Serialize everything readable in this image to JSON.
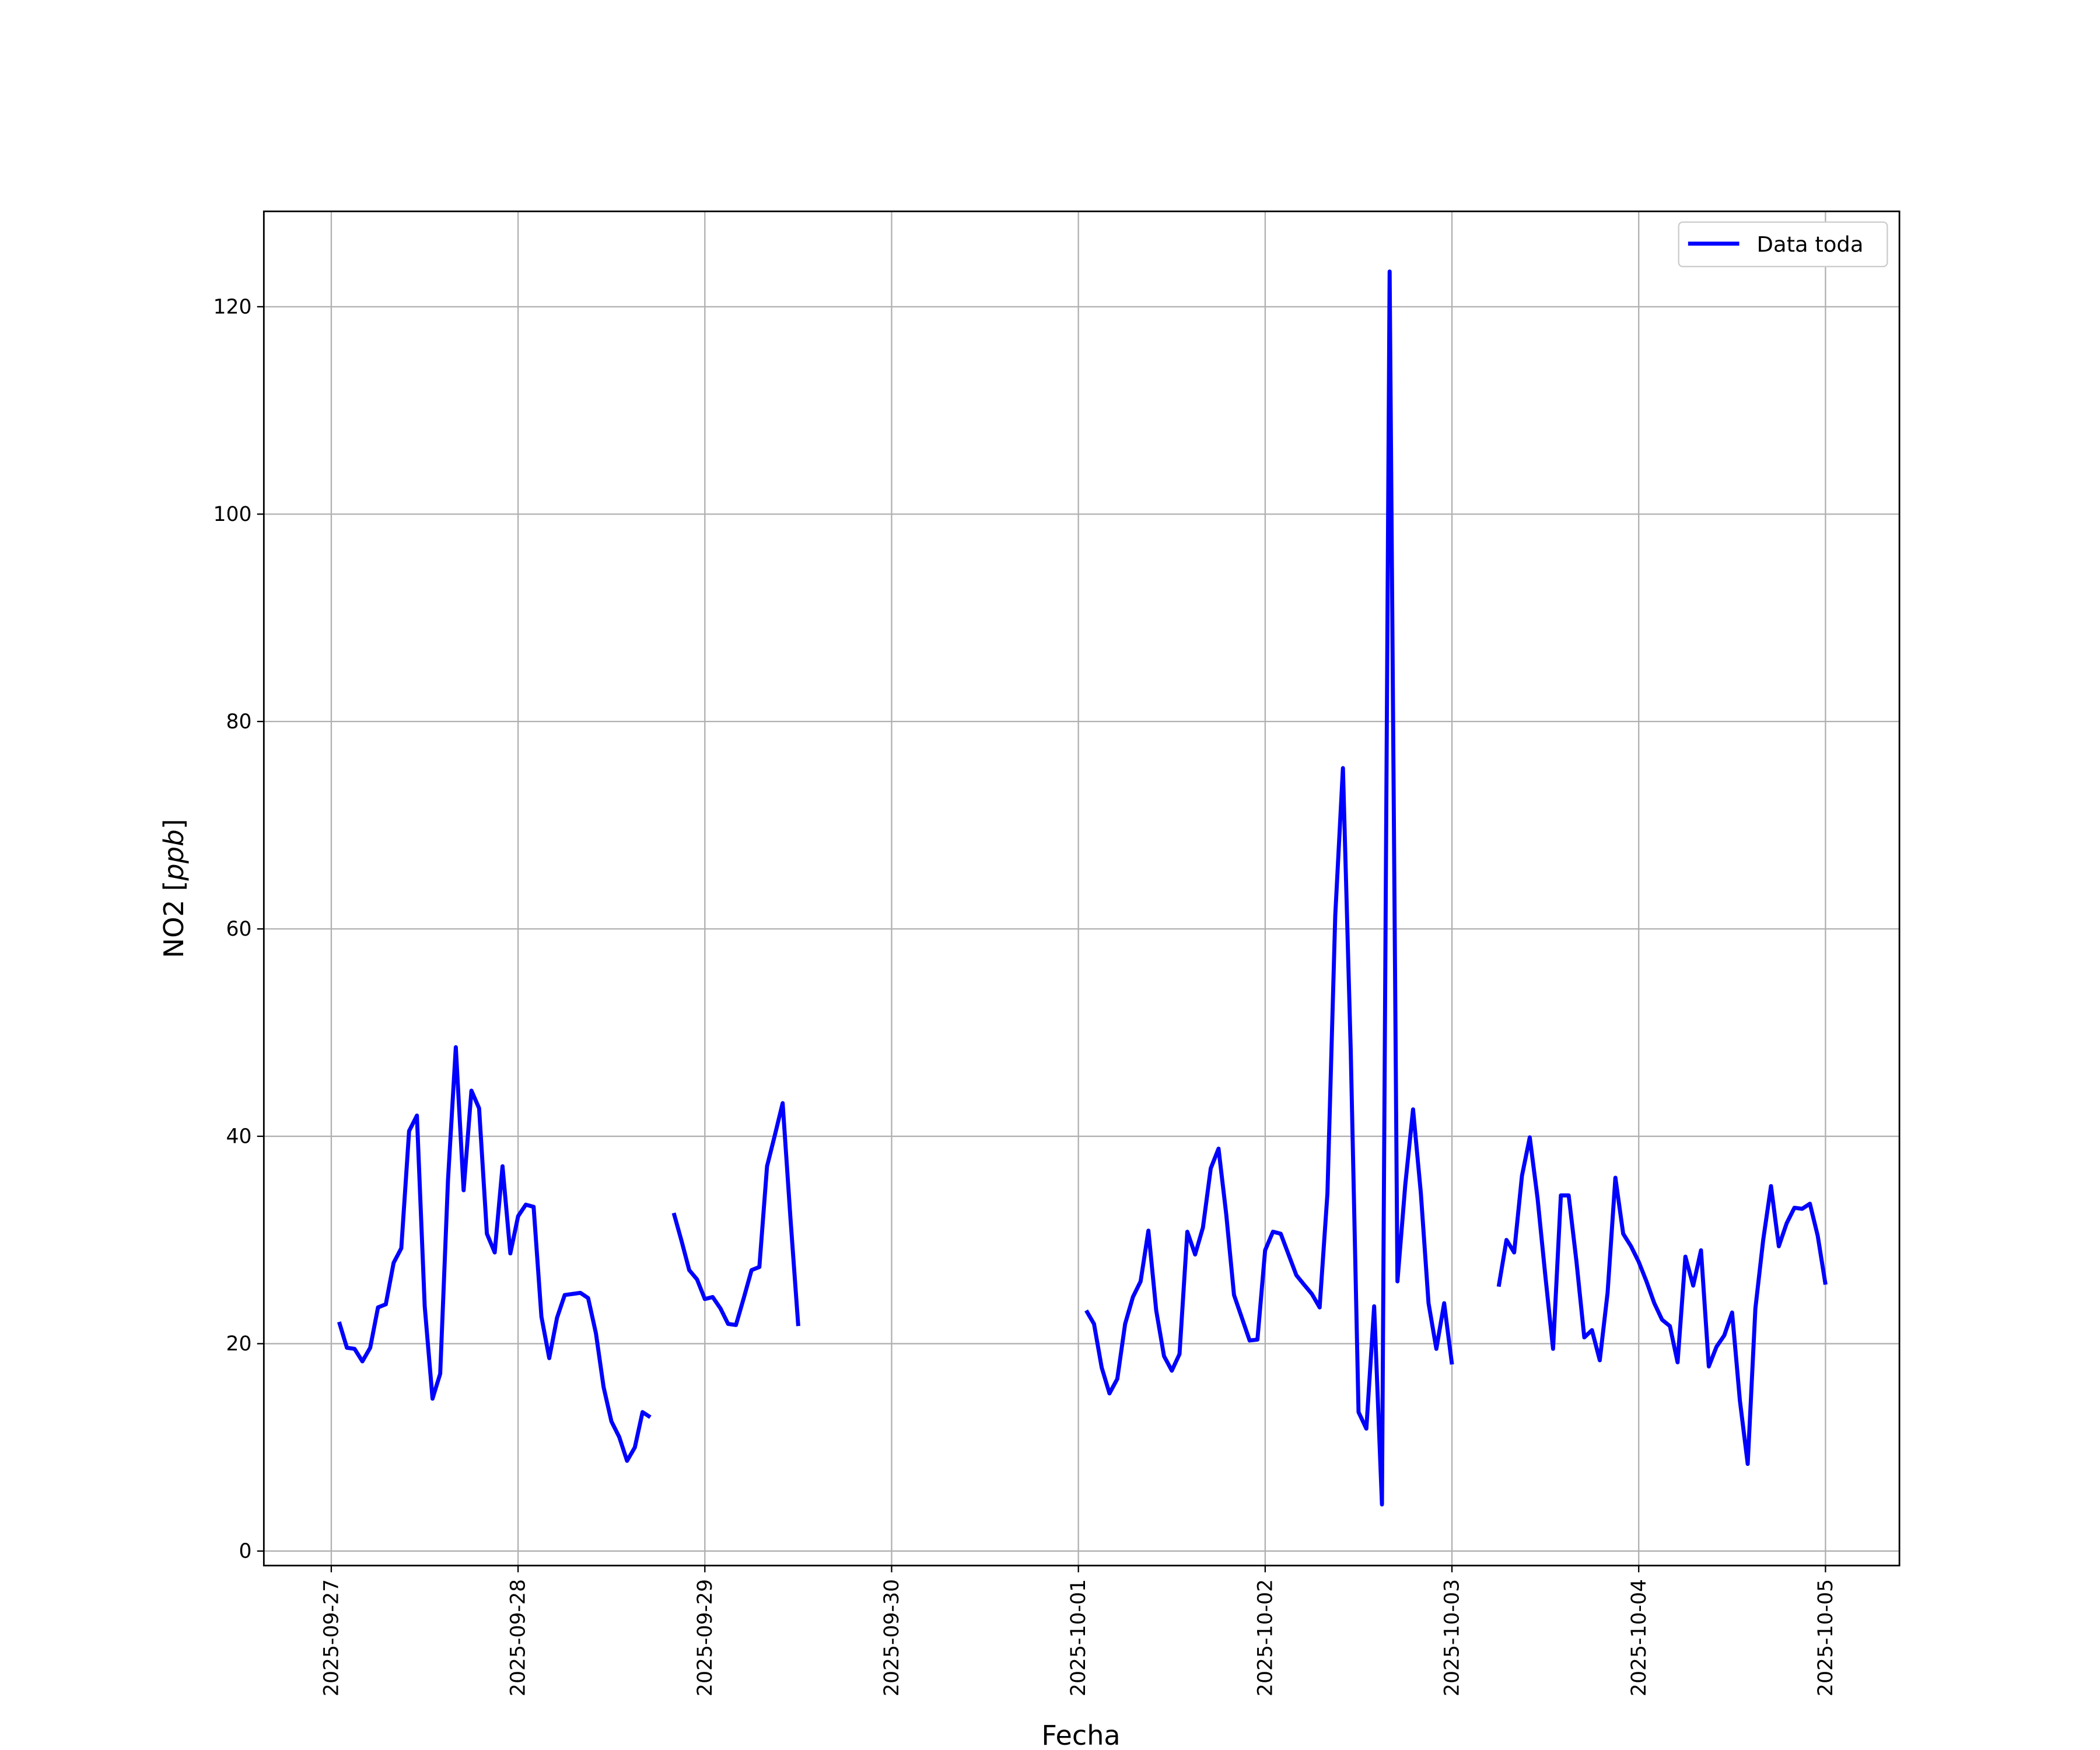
{
  "chart_data": {
    "type": "line",
    "title": "",
    "xlabel": "Fecha",
    "ylabel_plain": "NO2 [",
    "ylabel_italic": "ppb",
    "ylabel_close": "]",
    "ylim": [
      -1.4,
      129.2
    ],
    "xlim": [
      "2025-09-26T15:20",
      "2025-10-05T09:30"
    ],
    "yticks": [
      0,
      20,
      40,
      60,
      80,
      100,
      120
    ],
    "xticks": [
      "2025-09-27",
      "2025-09-28",
      "2025-09-29",
      "2025-09-30",
      "2025-10-01",
      "2025-10-02",
      "2025-10-03",
      "2025-10-04",
      "2025-10-05"
    ],
    "grid": true,
    "legend_placement": "top-right",
    "line_color": "#0000ff",
    "series": [
      {
        "name": "Data toda",
        "frequency": "hourly",
        "segments": [
          {
            "start": "2025-09-27T01:00",
            "values": [
              22.1,
              19.6,
              19.5,
              18.3,
              19.6,
              23.5,
              23.8,
              27.8,
              29.2,
              40.5,
              42.0,
              23.6,
              14.7,
              17.1,
              35.8,
              48.6,
              34.8,
              44.4,
              42.7,
              30.6,
              28.8,
              37.1,
              28.7,
              32.3,
              33.4,
              33.2,
              22.6,
              18.6,
              22.5,
              24.7,
              24.8,
              24.9,
              24.4,
              21.0,
              15.8,
              12.5,
              11.0,
              8.7,
              10.0,
              13.4,
              12.9
            ]
          },
          {
            "start": "2025-09-28T20:00",
            "values": [
              32.6,
              29.9,
              27.1,
              26.2,
              24.3,
              24.5,
              23.4,
              21.9,
              21.8,
              24.4,
              27.1,
              27.4,
              37.1,
              40.1,
              43.2,
              32.1,
              21.7
            ]
          },
          {
            "start": "2025-10-01T01:00",
            "values": [
              23.2,
              21.9,
              17.7,
              15.2,
              16.6,
              21.9,
              24.5,
              26.0,
              30.9,
              23.2,
              18.8,
              17.4,
              19.0,
              30.8,
              28.6,
              31.2,
              36.9,
              38.8,
              32.5,
              24.7,
              22.5,
              20.3,
              20.4,
              29.0,
              30.8,
              30.6,
              28.6,
              26.6,
              25.7,
              24.8,
              23.5,
              34.5,
              61.3,
              75.5,
              48.3,
              13.4,
              11.8,
              23.6,
              4.5,
              123.4,
              26.0,
              35.3,
              42.6,
              34.5,
              23.9,
              19.5,
              23.9,
              18.0
            ]
          },
          {
            "start": "2025-10-03T06:00",
            "values": [
              25.5,
              30.0,
              28.8,
              36.2,
              39.9,
              34.0,
              26.5,
              19.5,
              34.3,
              34.3,
              27.9,
              20.6,
              21.3,
              18.4,
              24.9,
              36.0,
              30.6,
              29.4,
              27.9,
              26.0,
              23.9,
              22.3,
              21.7,
              18.2,
              28.4,
              25.6,
              29.0,
              17.8,
              19.7,
              20.8,
              23.0,
              14.5,
              8.4,
              23.4,
              30.0,
              35.2,
              29.4,
              31.6,
              33.1,
              33.0,
              33.5,
              30.4,
              25.7
            ]
          }
        ]
      }
    ]
  }
}
